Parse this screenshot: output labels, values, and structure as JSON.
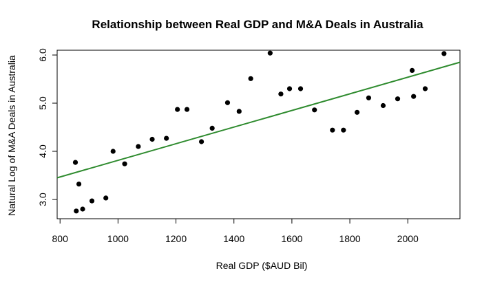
{
  "chart_data": {
    "type": "scatter",
    "title": "Relationship between Real GDP and M&A Deals in Australia",
    "xlabel": "Real GDP ($AUD Bil)",
    "ylabel": "Natural Log of M&A Deals in Australia",
    "xlim": [
      790,
      2180
    ],
    "ylim": [
      2.6,
      6.1
    ],
    "x_ticks": [
      800,
      1000,
      1200,
      1400,
      1600,
      1800,
      2000
    ],
    "y_ticks": [
      3.0,
      4.0,
      5.0,
      6.0
    ],
    "y_tick_labels": [
      "3.0",
      "4.0",
      "5.0",
      "6.0"
    ],
    "grid": false,
    "point_color": "#000000",
    "line_color": "#2e8b2e",
    "points": [
      {
        "x": 853,
        "y": 3.77
      },
      {
        "x": 856,
        "y": 2.76
      },
      {
        "x": 865,
        "y": 3.32
      },
      {
        "x": 878,
        "y": 2.8
      },
      {
        "x": 910,
        "y": 2.97
      },
      {
        "x": 958,
        "y": 3.03
      },
      {
        "x": 983,
        "y": 4.0
      },
      {
        "x": 1023,
        "y": 3.74
      },
      {
        "x": 1070,
        "y": 4.1
      },
      {
        "x": 1118,
        "y": 4.25
      },
      {
        "x": 1167,
        "y": 4.27
      },
      {
        "x": 1205,
        "y": 4.87
      },
      {
        "x": 1238,
        "y": 4.87
      },
      {
        "x": 1288,
        "y": 4.2
      },
      {
        "x": 1325,
        "y": 4.48
      },
      {
        "x": 1378,
        "y": 5.01
      },
      {
        "x": 1418,
        "y": 4.83
      },
      {
        "x": 1458,
        "y": 5.51
      },
      {
        "x": 1525,
        "y": 6.04
      },
      {
        "x": 1562,
        "y": 5.19
      },
      {
        "x": 1592,
        "y": 5.3
      },
      {
        "x": 1630,
        "y": 5.3
      },
      {
        "x": 1678,
        "y": 4.86
      },
      {
        "x": 1740,
        "y": 4.44
      },
      {
        "x": 1778,
        "y": 4.44
      },
      {
        "x": 1825,
        "y": 4.81
      },
      {
        "x": 1865,
        "y": 5.11
      },
      {
        "x": 1915,
        "y": 4.95
      },
      {
        "x": 1965,
        "y": 5.09
      },
      {
        "x": 2015,
        "y": 5.68
      },
      {
        "x": 2020,
        "y": 5.14
      },
      {
        "x": 2060,
        "y": 5.3
      },
      {
        "x": 2125,
        "y": 6.03
      }
    ],
    "regression_line": {
      "x": [
        790,
        2180
      ],
      "y": [
        3.45,
        5.85
      ]
    }
  }
}
